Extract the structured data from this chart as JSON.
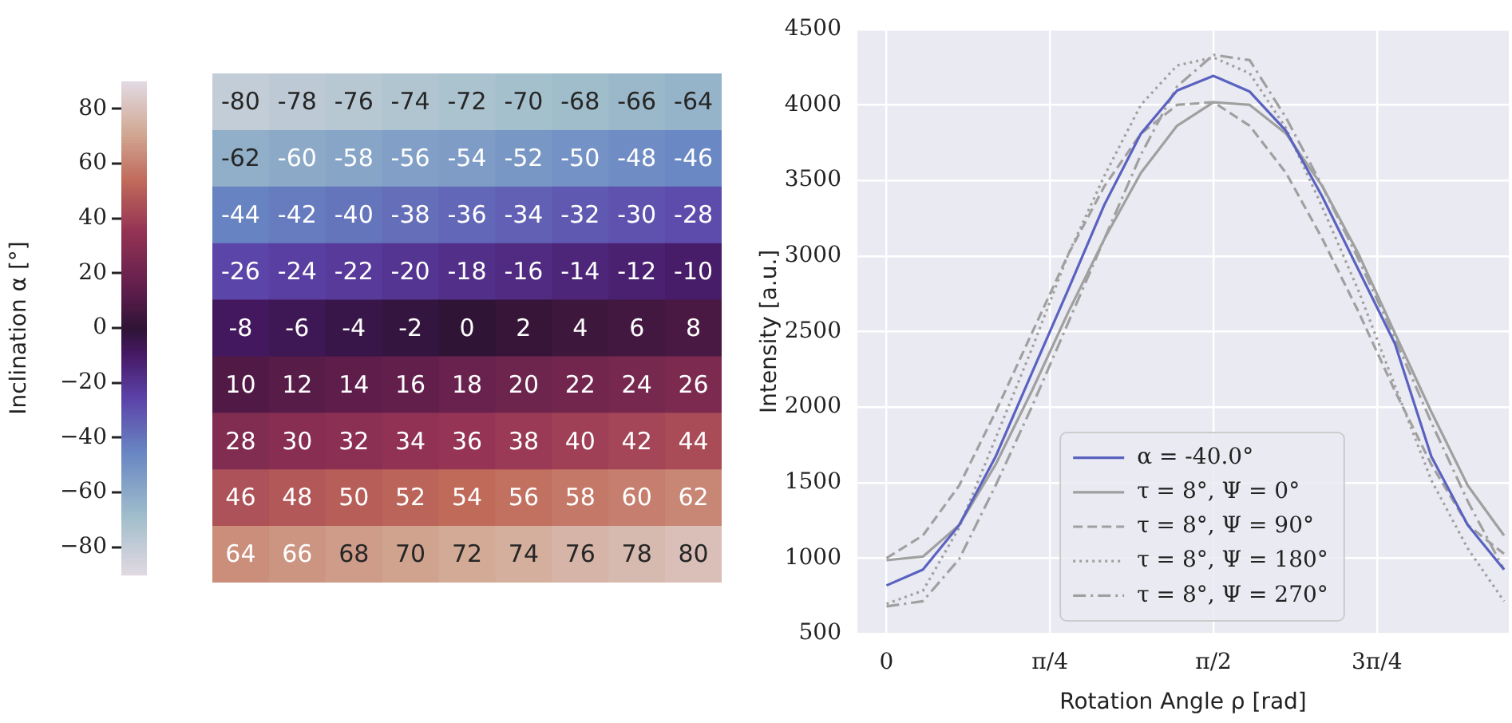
{
  "chart_data": [
    {
      "type": "heatmap",
      "clabel": "Inclination α [°]",
      "categories": [
        null,
        null,
        null,
        null,
        null,
        null,
        null,
        null,
        null
      ],
      "y_categories": [
        null,
        null,
        null,
        null,
        null,
        null,
        null,
        null,
        null
      ],
      "cells": [
        [
          -80,
          -78,
          -76,
          -74,
          -72,
          -70,
          -68,
          -66,
          -64
        ],
        [
          -62,
          -60,
          -58,
          -56,
          -54,
          -52,
          -50,
          -48,
          -46
        ],
        [
          -44,
          -42,
          -40,
          -38,
          -36,
          -34,
          -32,
          -30,
          -28
        ],
        [
          -26,
          -24,
          -22,
          -20,
          -18,
          -16,
          -14,
          -12,
          -10
        ],
        [
          -8,
          -6,
          -4,
          -2,
          0,
          2,
          4,
          6,
          8
        ],
        [
          10,
          12,
          14,
          16,
          18,
          20,
          22,
          24,
          26
        ],
        [
          28,
          30,
          32,
          34,
          36,
          38,
          40,
          42,
          44
        ],
        [
          46,
          48,
          50,
          52,
          54,
          56,
          58,
          60,
          62
        ],
        [
          64,
          66,
          68,
          70,
          72,
          74,
          76,
          78,
          80
        ]
      ],
      "data_labels": true,
      "clim": [
        -90,
        90
      ],
      "cticks": [
        {
          "value": -80,
          "label": "−80"
        },
        {
          "value": -60,
          "label": "−60"
        },
        {
          "value": -40,
          "label": "−40"
        },
        {
          "value": -20,
          "label": "−20"
        },
        0,
        20,
        40,
        60,
        80
      ]
    },
    {
      "type": "line",
      "xlabel": "Rotation Angle ρ [rad]",
      "ylabel": "Intensity [a.u.]",
      "x": [
        0,
        0.175,
        0.349,
        0.524,
        0.698,
        0.873,
        1.047,
        1.222,
        1.396,
        1.571,
        1.745,
        1.92,
        2.094,
        2.269,
        2.443,
        2.618,
        2.793,
        2.967
      ],
      "xlim": [
        -0.14,
        2.99
      ],
      "xticks": [
        0,
        {
          "value": 0.785,
          "label": "π/4"
        },
        {
          "value": 1.571,
          "label": "π/2"
        },
        {
          "value": 2.356,
          "label": "3π/4"
        }
      ],
      "ylim": [
        500,
        4500
      ],
      "yticks": [
        500,
        1000,
        1500,
        2000,
        2500,
        3000,
        3500,
        4000,
        4500
      ],
      "grid": true,
      "legend": "bottom",
      "marker": "none",
      "series": [
        {
          "name": "α = -40.0°",
          "color": "#5a62c0",
          "line_style": "solid",
          "values": [
            819,
            924,
            1219,
            1671,
            2224,
            2777,
            3340,
            3809,
            4095,
            4192,
            4088,
            3827,
            3392,
            2905,
            2419,
            1671,
            1219,
            924
          ]
        },
        {
          "name": "τ = 8°, Ψ = 0°",
          "color": "#a0a0a0",
          "line_style": "solid",
          "values": [
            986,
            1010,
            1219,
            1619,
            2106,
            2627,
            3114,
            3549,
            3862,
            4018,
            4000,
            3809,
            3462,
            3010,
            2488,
            1967,
            1480,
            1150
          ]
        },
        {
          "name": "τ = 8°, Ψ = 90°",
          "color": "#a0a0a0",
          "line_style": "dashed",
          "values": [
            1000,
            1150,
            1480,
            1967,
            2488,
            3010,
            3462,
            3809,
            4000,
            4018,
            3862,
            3549,
            3114,
            2627,
            2106,
            1619,
            1219,
            1028
          ]
        },
        {
          "name": "τ = 8°, Ψ = 180°",
          "color": "#a0a0a0",
          "line_style": "dotted",
          "values": [
            697,
            784,
            1202,
            1793,
            2384,
            3010,
            3531,
            4000,
            4261,
            4314,
            4209,
            3844,
            3323,
            2766,
            2140,
            1515,
            1063,
            715
          ]
        },
        {
          "name": "τ = 8°, Ψ = 270°",
          "color": "#a0a0a0",
          "line_style": "dashdot",
          "values": [
            680,
            715,
            993,
            1480,
            2001,
            2558,
            3114,
            3670,
            4122,
            4331,
            4296,
            3914,
            3462,
            2975,
            2453,
            1897,
            1376,
            924
          ]
        }
      ]
    }
  ]
}
